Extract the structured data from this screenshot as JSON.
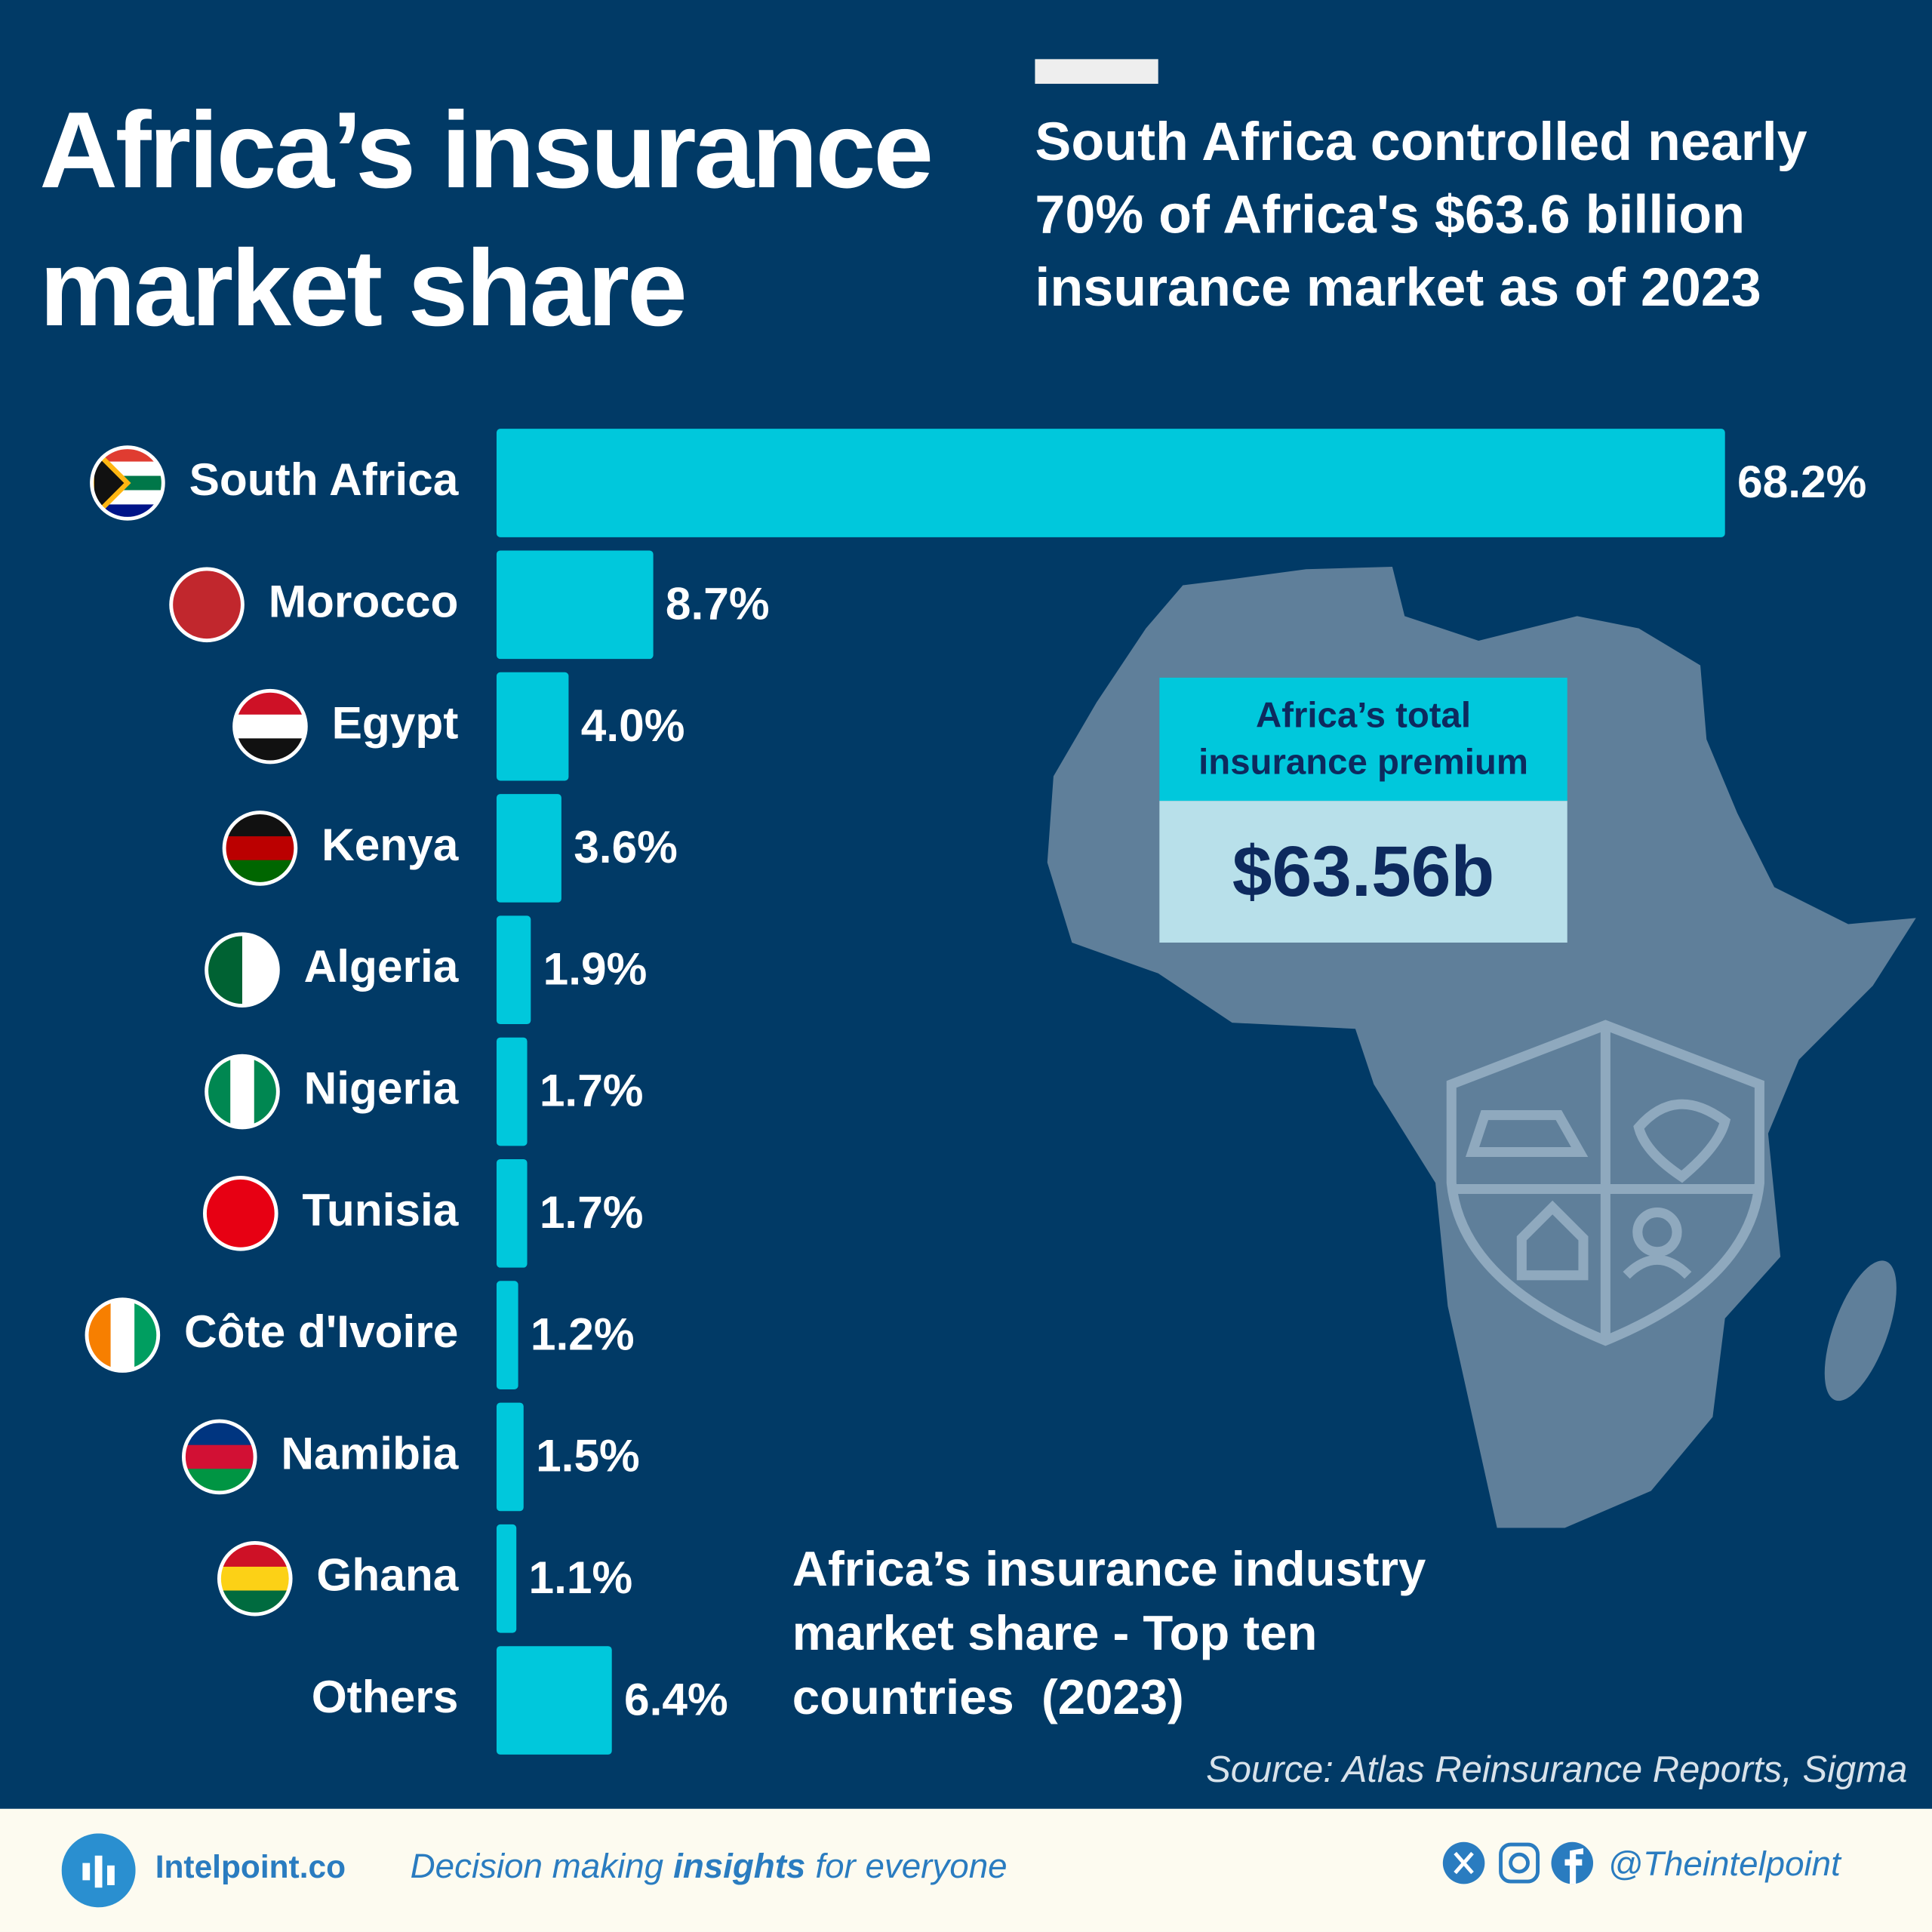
{
  "header": {
    "title": "Africa’s insurance market share",
    "subtitle": "South Africa controlled nearly 70% of Africa's $63.6 billion insurance market as of 2023"
  },
  "chart_data": {
    "type": "hbar",
    "caption": "Africa’s insurance industry market share - Top ten countries  (2023)",
    "categories": [
      "South Africa",
      "Morocco",
      "Egypt",
      "Kenya",
      "Algeria",
      "Nigeria",
      "Tunisia",
      "Côte d'Ivoire",
      "Namibia",
      "Ghana",
      "Others"
    ],
    "values": [
      68.2,
      8.7,
      4.0,
      3.6,
      1.9,
      1.7,
      1.7,
      1.2,
      1.5,
      1.1,
      6.4
    ],
    "value_labels": [
      "68.2%",
      "8.7%",
      "4.0%",
      "3.6%",
      "1.9%",
      "1.7%",
      "1.7%",
      "1.2%",
      "1.5%",
      "1.1%",
      "6.4%"
    ],
    "color": "#00c8dc"
  },
  "callout": {
    "label": "Africa’s total insurance premium",
    "value": "$63.56b"
  },
  "source": "Source: Atlas Reinsurance Reports, Sigma",
  "footer": {
    "brand": "Intelpoint.co",
    "tagline_before": "Decision making",
    "tagline_bold": "insights",
    "tagline_after": "for everyone",
    "handle": "@Theintelpoint"
  }
}
